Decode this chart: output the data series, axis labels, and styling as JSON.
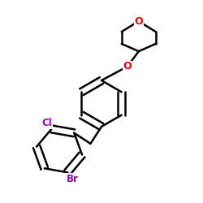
{
  "bg_color": "#ffffff",
  "bond_color": "#000000",
  "O_color": "#ff0000",
  "Cl_color": "#9900cc",
  "Br_color": "#9900cc",
  "line_width": 1.8,
  "dbo": 0.018,
  "figsize": [
    2.5,
    2.5
  ],
  "dpi": 100,
  "xlim": [
    0.0,
    1.0
  ],
  "ylim": [
    0.0,
    1.0
  ]
}
